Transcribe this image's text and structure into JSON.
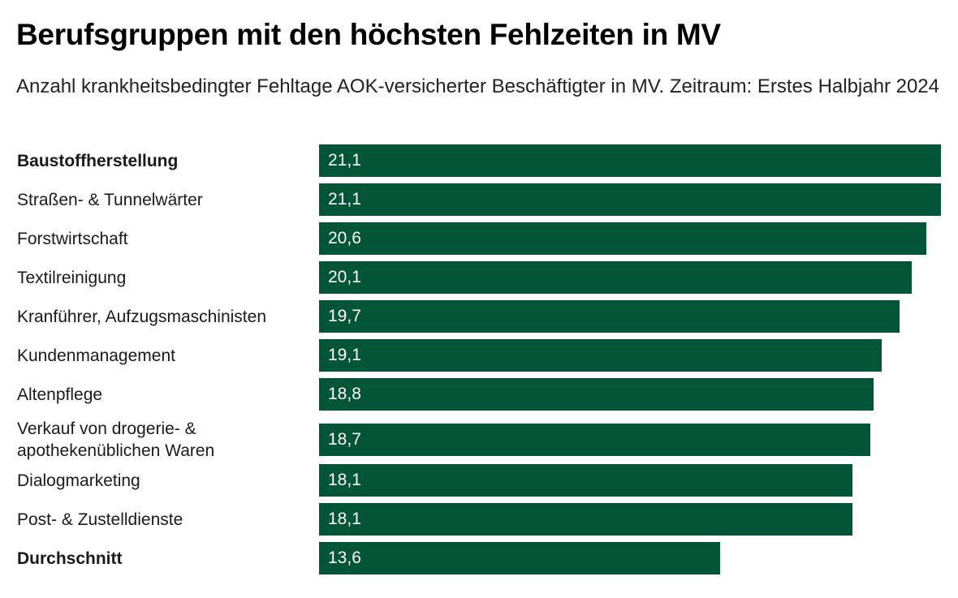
{
  "header": {
    "title": "Berufsgruppen mit den höchsten Fehlzeiten in MV",
    "subtitle": "Anzahl krankheitsbedingter Fehltage AOK-versicherter Beschäftigter in MV. Zeitraum: Erstes Halbjahr 2024"
  },
  "colors": {
    "bar": "#035537",
    "value_text": "#ffffff"
  },
  "chart_data": {
    "type": "bar",
    "orientation": "horizontal",
    "title": "Berufsgruppen mit den höchsten Fehlzeiten in MV",
    "subtitle": "Anzahl krankheitsbedingter Fehltage AOK-versicherter Beschäftigter in MV. Zeitraum: Erstes Halbjahr 2024",
    "xlabel": "",
    "ylabel": "",
    "xlim": [
      0,
      21.1
    ],
    "grid": false,
    "legend": "none",
    "categories": [
      "Baustoffherstellung",
      "Straßen- & Tunnelwärter",
      "Forstwirtschaft",
      "Textilreinigung",
      "Kranführer, Aufzugsmaschinisten",
      "Kundenmanagement",
      "Altenpflege",
      "Verkauf von drogerie- & apothekenüblichen Waren",
      "Dialogmarketing",
      "Post- & Zustelldienste",
      "Durchschnitt"
    ],
    "values": [
      21.1,
      21.1,
      20.6,
      20.1,
      19.7,
      19.1,
      18.8,
      18.7,
      18.1,
      18.1,
      13.6
    ],
    "value_labels": [
      "21,1",
      "21,1",
      "20,6",
      "20,1",
      "19,7",
      "19,1",
      "18,8",
      "18,7",
      "18,1",
      "18,1",
      "13,6"
    ],
    "bold_categories": [
      "Baustoffherstellung",
      "Durchschnitt"
    ]
  }
}
